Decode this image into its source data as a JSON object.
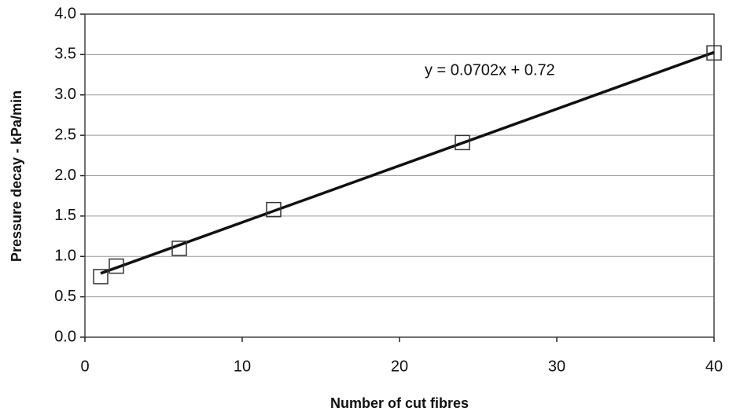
{
  "chart_data": {
    "type": "scatter",
    "x": [
      1,
      2,
      6,
      12,
      24,
      40
    ],
    "values": [
      0.75,
      0.88,
      1.1,
      1.58,
      2.41,
      3.52
    ],
    "color": "#333333",
    "xlabel": "Number of cut fibres",
    "ylabel": "Pressure decay - kPa/min",
    "xlim": [
      0,
      40
    ],
    "xticks": [
      0,
      10,
      20,
      30,
      40
    ],
    "ylim": [
      0,
      4
    ],
    "yticks": [
      {
        "value": 0,
        "label": "0.0"
      },
      {
        "value": 0.5,
        "label": "0.5"
      },
      {
        "value": 1,
        "label": "1.0"
      },
      {
        "value": 1.5,
        "label": "1.5"
      },
      {
        "value": 2,
        "label": "2.0"
      },
      {
        "value": 2.5,
        "label": "2.5"
      },
      {
        "value": 3,
        "label": "3.0"
      },
      {
        "value": 3.5,
        "label": "3.5"
      },
      {
        "value": 4,
        "label": "4.0"
      }
    ],
    "grid": true,
    "trendline": {
      "slope": 0.0702,
      "intercept": 0.72,
      "label": "y = 0.0702x + 0.72"
    }
  }
}
